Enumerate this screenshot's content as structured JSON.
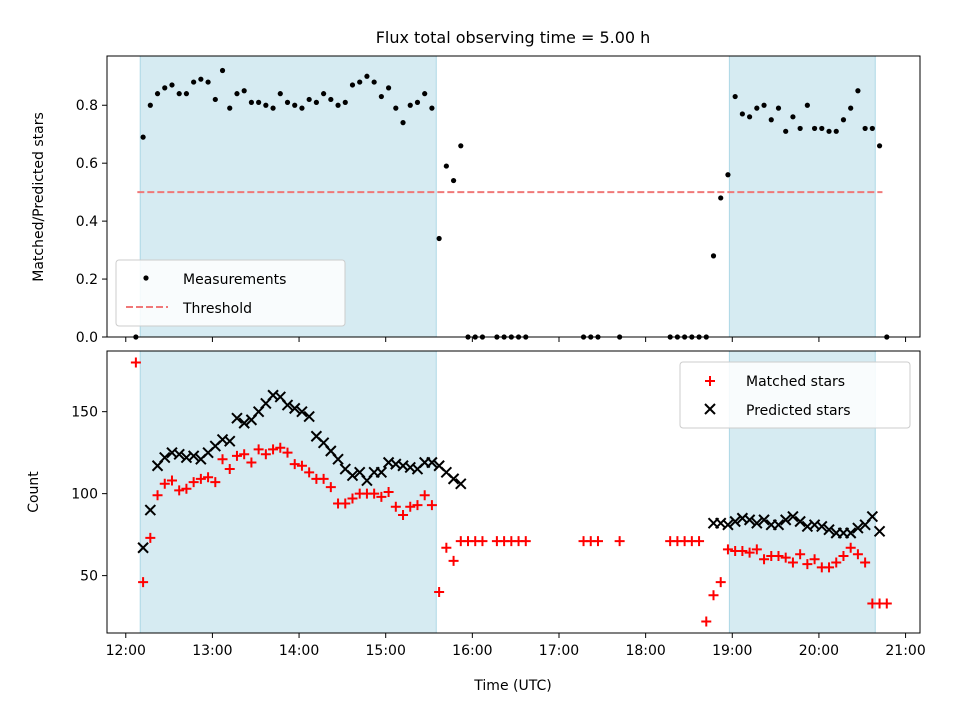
{
  "chart_data": [
    {
      "type": "scatter",
      "title": "Flux total observing time = 5.00 h",
      "xlabel": "",
      "ylabel": "Matched/Predicted stars",
      "xlim": [
        "11:47",
        "21:10"
      ],
      "ylim": [
        0,
        0.97
      ],
      "yticks": [
        0.0,
        0.2,
        0.4,
        0.6,
        0.8
      ],
      "ytick_labels": [
        "0.0",
        "0.2",
        "0.4",
        "0.6",
        "0.8"
      ],
      "legend": {
        "placement": "lower-left",
        "entries": [
          "Measurements",
          "Threshold"
        ]
      },
      "shaded_intervals": [
        [
          "12:10",
          "15:35"
        ],
        [
          "18:58",
          "20:39"
        ]
      ],
      "threshold": {
        "name": "Threshold",
        "value": 0.5,
        "x_range": [
          "12:08",
          "20:44"
        ],
        "color": "#f07878"
      },
      "series": [
        {
          "name": "Measurements",
          "marker": "dot",
          "color": "#000000",
          "x": [
            "12:07",
            "12:12",
            "12:17",
            "12:22",
            "12:27",
            "12:32",
            "12:37",
            "12:42",
            "12:47",
            "12:52",
            "12:57",
            "13:02",
            "13:07",
            "13:12",
            "13:17",
            "13:22",
            "13:27",
            "13:32",
            "13:37",
            "13:42",
            "13:47",
            "13:52",
            "13:57",
            "14:02",
            "14:07",
            "14:12",
            "14:17",
            "14:22",
            "14:27",
            "14:32",
            "14:37",
            "14:42",
            "14:47",
            "14:52",
            "14:57",
            "15:02",
            "15:07",
            "15:12",
            "15:17",
            "15:22",
            "15:27",
            "15:32",
            "15:37",
            "15:42",
            "15:47",
            "15:52",
            "15:57",
            "16:02",
            "16:07",
            "16:17",
            "16:22",
            "16:27",
            "16:32",
            "16:37",
            "17:17",
            "17:22",
            "17:27",
            "17:42",
            "18:17",
            "18:22",
            "18:27",
            "18:32",
            "18:37",
            "18:42",
            "18:47",
            "18:52",
            "18:57",
            "19:02",
            "19:07",
            "19:12",
            "19:17",
            "19:22",
            "19:27",
            "19:32",
            "19:37",
            "19:42",
            "19:47",
            "19:52",
            "19:57",
            "20:02",
            "20:07",
            "20:12",
            "20:17",
            "20:22",
            "20:27",
            "20:32",
            "20:37",
            "20:42",
            "20:47"
          ],
          "y": [
            0.0,
            0.69,
            0.8,
            0.84,
            0.86,
            0.87,
            0.84,
            0.84,
            0.88,
            0.89,
            0.88,
            0.82,
            0.92,
            0.79,
            0.84,
            0.85,
            0.81,
            0.81,
            0.8,
            0.79,
            0.84,
            0.81,
            0.8,
            0.79,
            0.82,
            0.81,
            0.84,
            0.82,
            0.8,
            0.81,
            0.87,
            0.88,
            0.9,
            0.88,
            0.83,
            0.86,
            0.79,
            0.74,
            0.8,
            0.81,
            0.84,
            0.79,
            0.34,
            0.59,
            0.54,
            0.66,
            0.0,
            0.0,
            0.0,
            0.0,
            0.0,
            0.0,
            0.0,
            0.0,
            0.0,
            0.0,
            0.0,
            0.0,
            0.0,
            0.0,
            0.0,
            0.0,
            0.0,
            0.0,
            0.28,
            0.48,
            0.56,
            0.83,
            0.77,
            0.76,
            0.79,
            0.8,
            0.75,
            0.79,
            0.71,
            0.76,
            0.72,
            0.8,
            0.72,
            0.72,
            0.71,
            0.71,
            0.75,
            0.79,
            0.85,
            0.72,
            0.72,
            0.66,
            0.0
          ]
        }
      ]
    },
    {
      "type": "scatter",
      "title": "",
      "xlabel": "Time (UTC)",
      "ylabel": "Count",
      "xlim": [
        "11:47",
        "21:10"
      ],
      "ylim": [
        15,
        187
      ],
      "yticks": [
        50,
        100,
        150
      ],
      "ytick_labels": [
        "50",
        "100",
        "150"
      ],
      "xticks": [
        "12:00",
        "13:00",
        "14:00",
        "15:00",
        "16:00",
        "17:00",
        "18:00",
        "19:00",
        "20:00",
        "21:00"
      ],
      "xtick_labels": [
        "12:00",
        "13:00",
        "14:00",
        "15:00",
        "16:00",
        "17:00",
        "18:00",
        "19:00",
        "20:00",
        "21:00"
      ],
      "legend": {
        "placement": "upper-right",
        "entries": [
          "Matched stars",
          "Predicted stars"
        ]
      },
      "shaded_intervals": [
        [
          "12:10",
          "15:35"
        ],
        [
          "18:58",
          "20:39"
        ]
      ],
      "series": [
        {
          "name": "Matched stars",
          "marker": "plus",
          "color": "#ff0000",
          "x": [
            "12:07",
            "12:12",
            "12:17",
            "12:22",
            "12:27",
            "12:32",
            "12:37",
            "12:42",
            "12:47",
            "12:52",
            "12:57",
            "13:02",
            "13:07",
            "13:12",
            "13:17",
            "13:22",
            "13:27",
            "13:32",
            "13:37",
            "13:42",
            "13:47",
            "13:52",
            "13:57",
            "14:02",
            "14:07",
            "14:12",
            "14:17",
            "14:22",
            "14:27",
            "14:32",
            "14:37",
            "14:42",
            "14:47",
            "14:52",
            "14:57",
            "15:02",
            "15:07",
            "15:12",
            "15:17",
            "15:22",
            "15:27",
            "15:32",
            "15:37",
            "15:42",
            "15:47",
            "15:52",
            "15:57",
            "16:02",
            "16:07",
            "16:17",
            "16:22",
            "16:27",
            "16:32",
            "16:37",
            "17:17",
            "17:22",
            "17:27",
            "17:42",
            "18:17",
            "18:22",
            "18:27",
            "18:32",
            "18:37",
            "18:42",
            "18:47",
            "18:52",
            "18:57",
            "19:02",
            "19:07",
            "19:12",
            "19:17",
            "19:22",
            "19:27",
            "19:32",
            "19:37",
            "19:42",
            "19:47",
            "19:52",
            "19:57",
            "20:02",
            "20:07",
            "20:12",
            "20:17",
            "20:22",
            "20:27",
            "20:32",
            "20:37",
            "20:42",
            "20:47"
          ],
          "y": [
            180,
            46,
            73,
            99,
            106,
            108,
            102,
            103,
            107,
            109,
            110,
            107,
            121,
            115,
            123,
            124,
            119,
            127,
            124,
            127,
            128,
            125,
            118,
            117,
            113,
            109,
            109,
            104,
            94,
            94,
            97,
            100,
            100,
            100,
            98,
            101,
            92,
            87,
            92,
            93,
            99,
            93,
            40,
            67,
            59,
            71,
            71,
            71,
            71,
            71,
            71,
            71,
            71,
            71,
            71,
            71,
            71,
            71,
            71,
            71,
            71,
            71,
            71,
            22,
            38,
            46,
            66,
            65,
            65,
            64,
            66,
            60,
            62,
            62,
            61,
            58,
            63,
            57,
            60,
            55,
            55,
            58,
            62,
            67,
            63,
            58,
            33,
            33,
            33
          ]
        },
        {
          "name": "Predicted stars",
          "marker": "x",
          "color": "#000000",
          "x": [
            "12:12",
            "12:17",
            "12:22",
            "12:27",
            "12:32",
            "12:37",
            "12:42",
            "12:47",
            "12:52",
            "12:57",
            "13:02",
            "13:07",
            "13:12",
            "13:17",
            "13:22",
            "13:27",
            "13:32",
            "13:37",
            "13:42",
            "13:47",
            "13:52",
            "13:57",
            "14:02",
            "14:07",
            "14:12",
            "14:17",
            "14:22",
            "14:27",
            "14:32",
            "14:37",
            "14:42",
            "14:47",
            "14:52",
            "14:57",
            "15:02",
            "15:07",
            "15:12",
            "15:17",
            "15:22",
            "15:27",
            "15:32",
            "15:37",
            "15:42",
            "15:47",
            "15:52",
            "18:47",
            "18:52",
            "18:57",
            "19:02",
            "19:07",
            "19:12",
            "19:17",
            "19:22",
            "19:27",
            "19:32",
            "19:37",
            "19:42",
            "19:47",
            "19:52",
            "19:57",
            "20:02",
            "20:07",
            "20:12",
            "20:17",
            "20:22",
            "20:27",
            "20:32",
            "20:37",
            "20:42"
          ],
          "y": [
            67,
            90,
            117,
            122,
            125,
            124,
            122,
            123,
            121,
            125,
            129,
            133,
            132,
            146,
            143,
            145,
            150,
            155,
            160,
            159,
            154,
            152,
            150,
            147,
            135,
            131,
            126,
            121,
            115,
            111,
            113,
            108,
            113,
            113,
            119,
            118,
            117,
            116,
            115,
            119,
            119,
            117,
            113,
            109,
            106,
            82,
            82,
            81,
            83,
            85,
            84,
            82,
            84,
            81,
            81,
            84,
            86,
            83,
            80,
            81,
            80,
            78,
            76,
            76,
            76,
            79,
            81,
            86,
            77
          ]
        }
      ]
    }
  ]
}
